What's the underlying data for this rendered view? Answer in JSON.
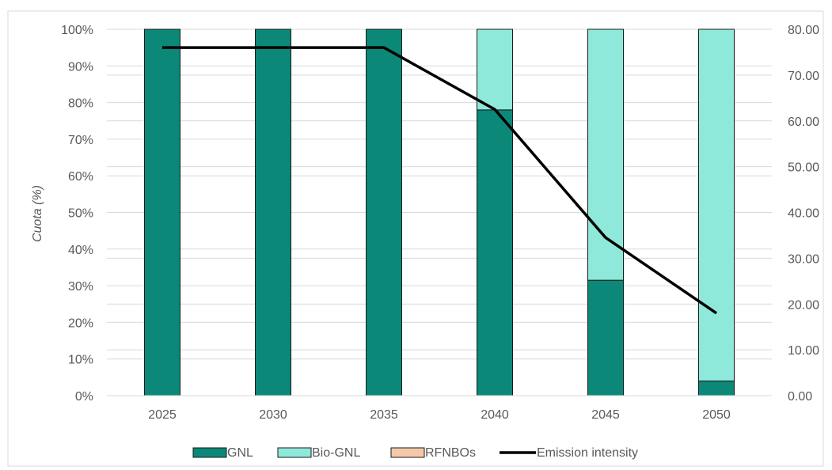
{
  "chart_data": {
    "type": "bar",
    "stacked": true,
    "categories": [
      "2025",
      "2030",
      "2035",
      "2040",
      "2045",
      "2050"
    ],
    "series": [
      {
        "name": "GNL",
        "color": "#0b8878",
        "values": [
          100,
          100,
          100,
          78,
          31.5,
          4
        ]
      },
      {
        "name": "Bio-GNL",
        "color": "#8ee9da",
        "values": [
          0,
          0,
          0,
          22,
          68.5,
          96
        ]
      },
      {
        "name": "RFNBOs",
        "color": "#f4c8a8",
        "values": [
          0,
          0,
          0,
          0,
          0,
          0
        ]
      }
    ],
    "line_series": {
      "name": "Emission intensity",
      "color": "#000000",
      "axis": "right",
      "values": [
        76.0,
        76.0,
        76.0,
        62.5,
        34.5,
        18.0
      ]
    },
    "ylabel": "Cuota (%)",
    "ylim": [
      0,
      100
    ],
    "yticks": [
      "0%",
      "10%",
      "20%",
      "30%",
      "40%",
      "50%",
      "60%",
      "70%",
      "80%",
      "90%",
      "100%"
    ],
    "y2lim": [
      0,
      80
    ],
    "y2ticks": [
      "0.00",
      "10.00",
      "20.00",
      "30.00",
      "40.00",
      "50.00",
      "60.00",
      "70.00",
      "80.00"
    ],
    "grid": true,
    "legend_position": "bottom"
  }
}
